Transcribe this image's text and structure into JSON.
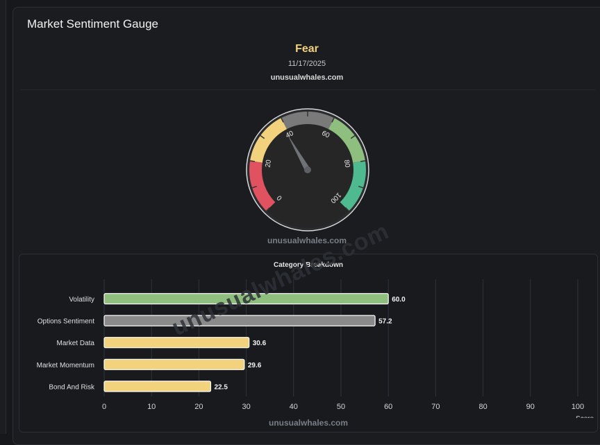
{
  "panel": {
    "title": "Market Sentiment Gauge"
  },
  "header": {
    "sentiment": "Fear",
    "date": "11/17/2025",
    "site": "unusualwhales.com"
  },
  "gauge": {
    "value": 39,
    "min": 0,
    "max": 100,
    "tick_labels": [
      "0",
      "20",
      "40",
      "60",
      "80",
      "100"
    ],
    "bands": [
      {
        "from": 0,
        "to": 20,
        "color": "#e0525f"
      },
      {
        "from": 20,
        "to": 40,
        "color": "#f2d27c"
      },
      {
        "from": 40,
        "to": 60,
        "color": "#7a7a7a"
      },
      {
        "from": 60,
        "to": 80,
        "color": "#8fbf7f"
      },
      {
        "from": 80,
        "to": 100,
        "color": "#4fb98f"
      }
    ],
    "watermark": "unusualwhales.com"
  },
  "chart_data": {
    "type": "bar",
    "orientation": "horizontal",
    "title": "Category Breakdown",
    "categories": [
      "Volatility",
      "Options Sentiment",
      "Market Data",
      "Market Momentum",
      "Bond And Risk"
    ],
    "values": [
      60.0,
      57.2,
      30.6,
      29.6,
      22.5
    ],
    "value_labels": [
      "60.0",
      "57.2",
      "30.6",
      "29.6",
      "22.5"
    ],
    "colors": [
      "#8fbf7f",
      "#8a8a8a",
      "#f2d27c",
      "#f2d27c",
      "#f2d27c"
    ],
    "xlabel": "Score",
    "xlim": [
      0,
      100
    ],
    "xticks": [
      0,
      10,
      20,
      30,
      40,
      50,
      60,
      70,
      80,
      90,
      100
    ],
    "grid": true,
    "watermark": "unusualwhales.com",
    "diagonal_watermark": "unusualwhales.com"
  }
}
